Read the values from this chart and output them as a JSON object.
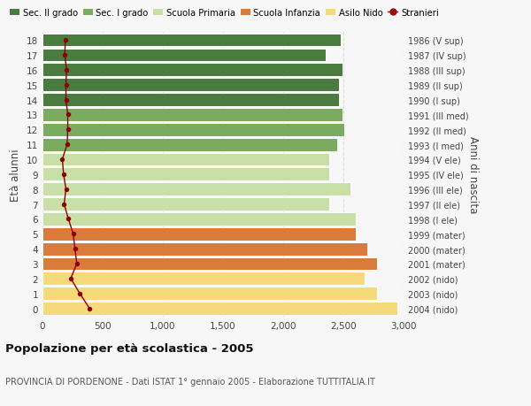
{
  "ages": [
    18,
    17,
    16,
    15,
    14,
    13,
    12,
    11,
    10,
    9,
    8,
    7,
    6,
    5,
    4,
    3,
    2,
    1,
    0
  ],
  "bar_values": [
    2480,
    2350,
    2490,
    2460,
    2460,
    2490,
    2510,
    2450,
    2380,
    2380,
    2560,
    2380,
    2600,
    2600,
    2700,
    2780,
    2680,
    2780,
    2950
  ],
  "stranieri_values": [
    190,
    185,
    200,
    195,
    195,
    210,
    210,
    205,
    165,
    175,
    195,
    180,
    215,
    255,
    270,
    285,
    235,
    310,
    390
  ],
  "right_labels": [
    "1986 (V sup)",
    "1987 (IV sup)",
    "1988 (III sup)",
    "1989 (II sup)",
    "1990 (I sup)",
    "1991 (III med)",
    "1992 (II med)",
    "1993 (I med)",
    "1994 (V ele)",
    "1995 (IV ele)",
    "1996 (III ele)",
    "1997 (II ele)",
    "1998 (I ele)",
    "1999 (mater)",
    "2000 (mater)",
    "2001 (mater)",
    "2002 (nido)",
    "2003 (nido)",
    "2004 (nido)"
  ],
  "bar_colors": [
    "#4a7c3f",
    "#4a7c3f",
    "#4a7c3f",
    "#4a7c3f",
    "#4a7c3f",
    "#7aab5e",
    "#7aab5e",
    "#7aab5e",
    "#c8dfa8",
    "#c8dfa8",
    "#c8dfa8",
    "#c8dfa8",
    "#c8dfa8",
    "#d97b3a",
    "#d97b3a",
    "#d97b3a",
    "#f5d97a",
    "#f5d97a",
    "#f5d97a"
  ],
  "legend_labels": [
    "Sec. II grado",
    "Sec. I grado",
    "Scuola Primaria",
    "Scuola Infanzia",
    "Asilo Nido",
    "Stranieri"
  ],
  "legend_colors": [
    "#4a7c3f",
    "#7aab5e",
    "#c8dfa8",
    "#d97b3a",
    "#f5d97a",
    "#9b1010"
  ],
  "ylabel": "Età alunni",
  "ylabel_right": "Anni di nascita",
  "title": "Popolazione per età scolastica - 2005",
  "subtitle": "PROVINCIA DI PORDENONE - Dati ISTAT 1° gennaio 2005 - Elaborazione TUTTITALIA.IT",
  "xlim": [
    0,
    3000
  ],
  "xticks": [
    0,
    500,
    1000,
    1500,
    2000,
    2500,
    3000
  ],
  "xtick_labels": [
    "0",
    "500",
    "1,000",
    "1,500",
    "2,000",
    "2,500",
    "3,000"
  ],
  "background_color": "#f7f7f7",
  "bar_edgecolor": "white",
  "stranieri_color": "#8b0000",
  "grid_color": "#dddddd"
}
